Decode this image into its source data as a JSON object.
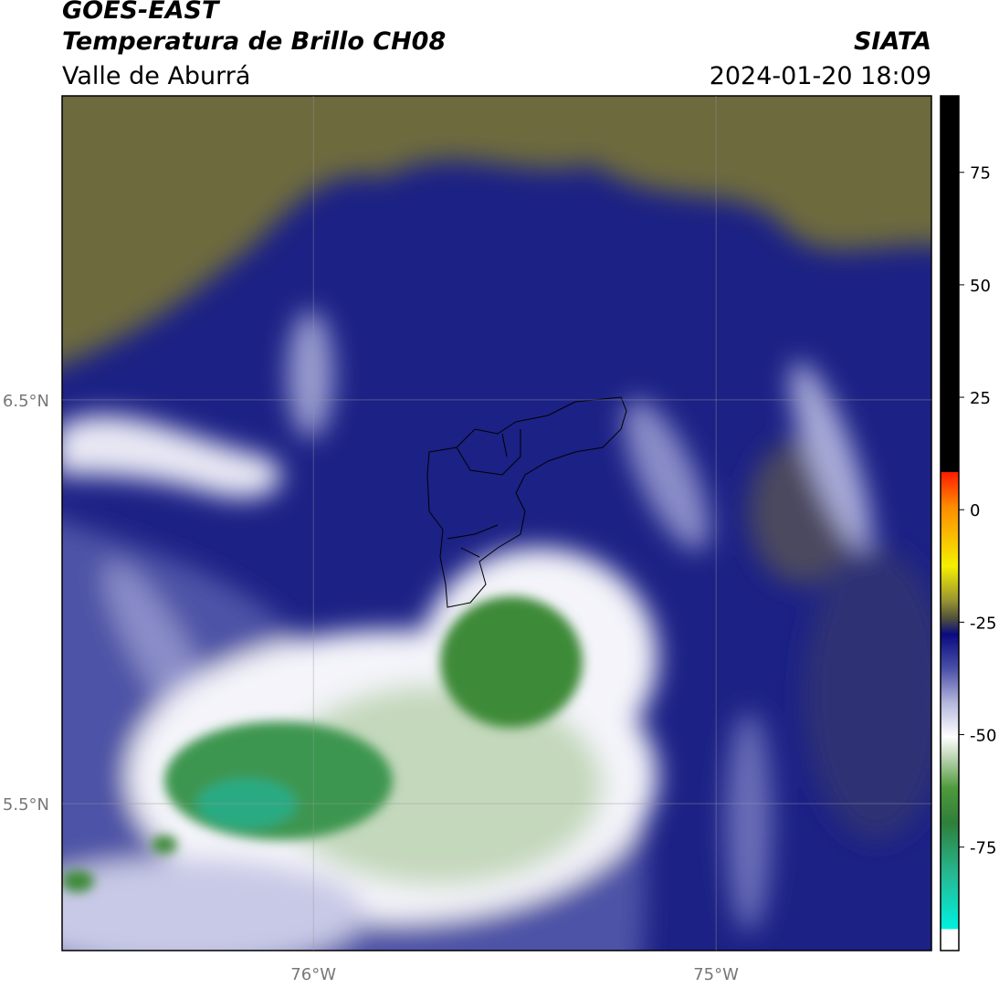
{
  "header": {
    "line1": "GOES-EAST",
    "line2": "Temperatura de Brillo CH08",
    "org": "SIATA",
    "region": "Valle de Aburrá",
    "datetime": "2024-01-20 18:09"
  },
  "map": {
    "lonlim": [
      -76.624,
      -74.465
    ],
    "latlim": [
      5.136,
      7.253
    ],
    "lonticks": [
      {
        "value": -76,
        "label": "76°W"
      },
      {
        "value": -75,
        "label": "75°W"
      }
    ],
    "latticks": [
      {
        "value": 6.5,
        "label": "6.5°N"
      },
      {
        "value": 5.5,
        "label": "5.5°N"
      }
    ]
  },
  "colorbar": {
    "range": [
      -98,
      92
    ],
    "ticks": [
      75,
      50,
      25,
      0,
      -25,
      -50,
      -75
    ]
  }
}
